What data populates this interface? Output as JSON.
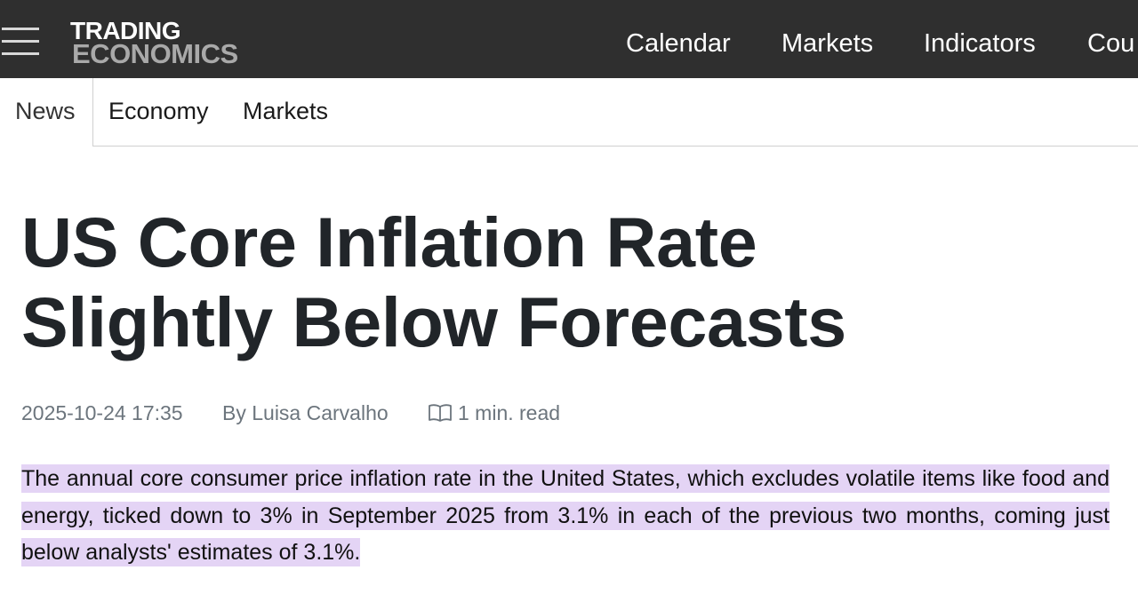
{
  "header": {
    "logo_line1": "TRADING",
    "logo_line2": "ECONOMICS",
    "nav": [
      {
        "label": "Calendar"
      },
      {
        "label": "Markets"
      },
      {
        "label": "Indicators"
      },
      {
        "label": "Cou"
      }
    ],
    "colors": {
      "background": "#2f2f2f",
      "logo_secondary": "#a9a9a9"
    }
  },
  "subnav": {
    "items": [
      {
        "label": "News"
      },
      {
        "label": "Economy"
      },
      {
        "label": "Markets"
      }
    ]
  },
  "article": {
    "title_line1": "US Core Inflation Rate",
    "title_line2": "Slightly Below Forecasts",
    "date": "2025-10-24 17:35",
    "author": "By Luisa Carvalho",
    "read_time": "1 min. read",
    "read_icon": "book-open-icon",
    "summary": "The annual core consumer price inflation rate in the United States, which excludes volatile items like food and energy, ticked down to 3% in September 2025 from 3.1% in each of the previous two months, coming just below analysts' estimates of 3.1%.",
    "highlight_color": "#e4d4f5"
  }
}
